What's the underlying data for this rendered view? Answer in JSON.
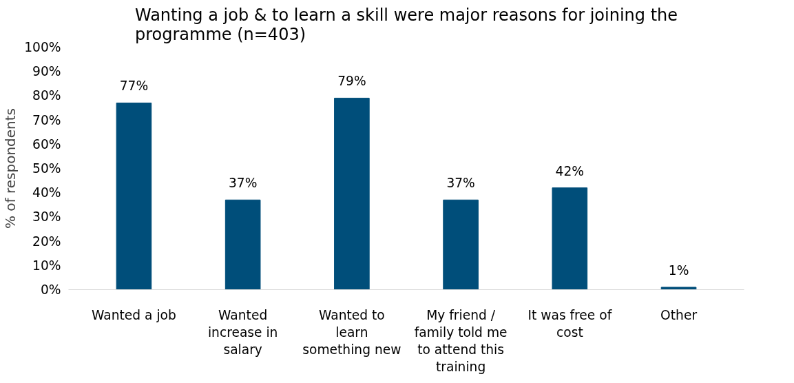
{
  "chart_data": {
    "type": "bar",
    "title": "Wanting a job & to learn a skill were major reasons for joining the programme (n=403)",
    "ylabel": "% of respondents",
    "categories": [
      "Wanted a job",
      "Wanted increase in salary",
      "Wanted to learn something new",
      "My friend / family told me to attend this training",
      "It was free of cost",
      "Other"
    ],
    "values": [
      77,
      37,
      79,
      37,
      42,
      1
    ],
    "value_labels": [
      "77%",
      "37%",
      "79%",
      "37%",
      "42%",
      "1%"
    ],
    "color": "#004e7a",
    "ylim": [
      0,
      100
    ],
    "yticks": [
      {
        "value": 0,
        "label": "0%"
      },
      {
        "value": 10,
        "label": "10%"
      },
      {
        "value": 20,
        "label": "20%"
      },
      {
        "value": 30,
        "label": "30%"
      },
      {
        "value": 40,
        "label": "40%"
      },
      {
        "value": 50,
        "label": "50%"
      },
      {
        "value": 60,
        "label": "60%"
      },
      {
        "value": 70,
        "label": "70%"
      },
      {
        "value": 80,
        "label": "80%"
      },
      {
        "value": 90,
        "label": "90%"
      },
      {
        "value": 100,
        "label": "100%"
      }
    ],
    "grid": false
  }
}
